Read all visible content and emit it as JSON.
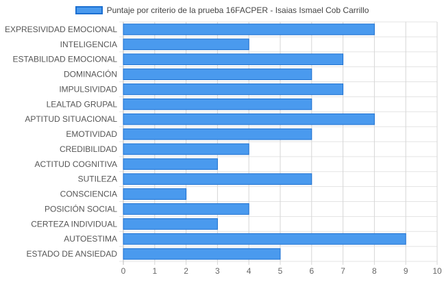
{
  "chart_data": {
    "type": "bar",
    "orientation": "horizontal",
    "legend": "top-center",
    "grid": true,
    "xlim": [
      0,
      10
    ],
    "x_ticks": [
      0,
      1,
      2,
      3,
      4,
      5,
      6,
      7,
      8,
      9,
      10
    ],
    "series": [
      {
        "name": "Puntaje por criterio de la prueba 16FACPER - Isaias Ismael Cob Carrillo",
        "color": "#4a9aee",
        "border_color": "#1b6fd1"
      }
    ],
    "categories": [
      "EXPRESIVIDAD EMOCIONAL",
      "INTELIGENCIA",
      "ESTABILIDAD EMOCIONAL",
      "DOMINACIÓN",
      "IMPULSIVIDAD",
      "LEALTAD GRUPAL",
      "APTITUD SITUACIONAL",
      "EMOTIVIDAD",
      "CREDIBILIDAD",
      "ACTITUD COGNITIVA",
      "SUTILEZA",
      "CONSCIENCIA",
      "POSICIÓN SOCIAL",
      "CERTEZA INDIVIDUAL",
      "AUTOESTIMA",
      "ESTADO DE ANSIEDAD"
    ],
    "values": [
      8,
      4,
      7,
      6,
      7,
      6,
      8,
      6,
      4,
      3,
      6,
      2,
      4,
      3,
      9,
      5
    ]
  }
}
